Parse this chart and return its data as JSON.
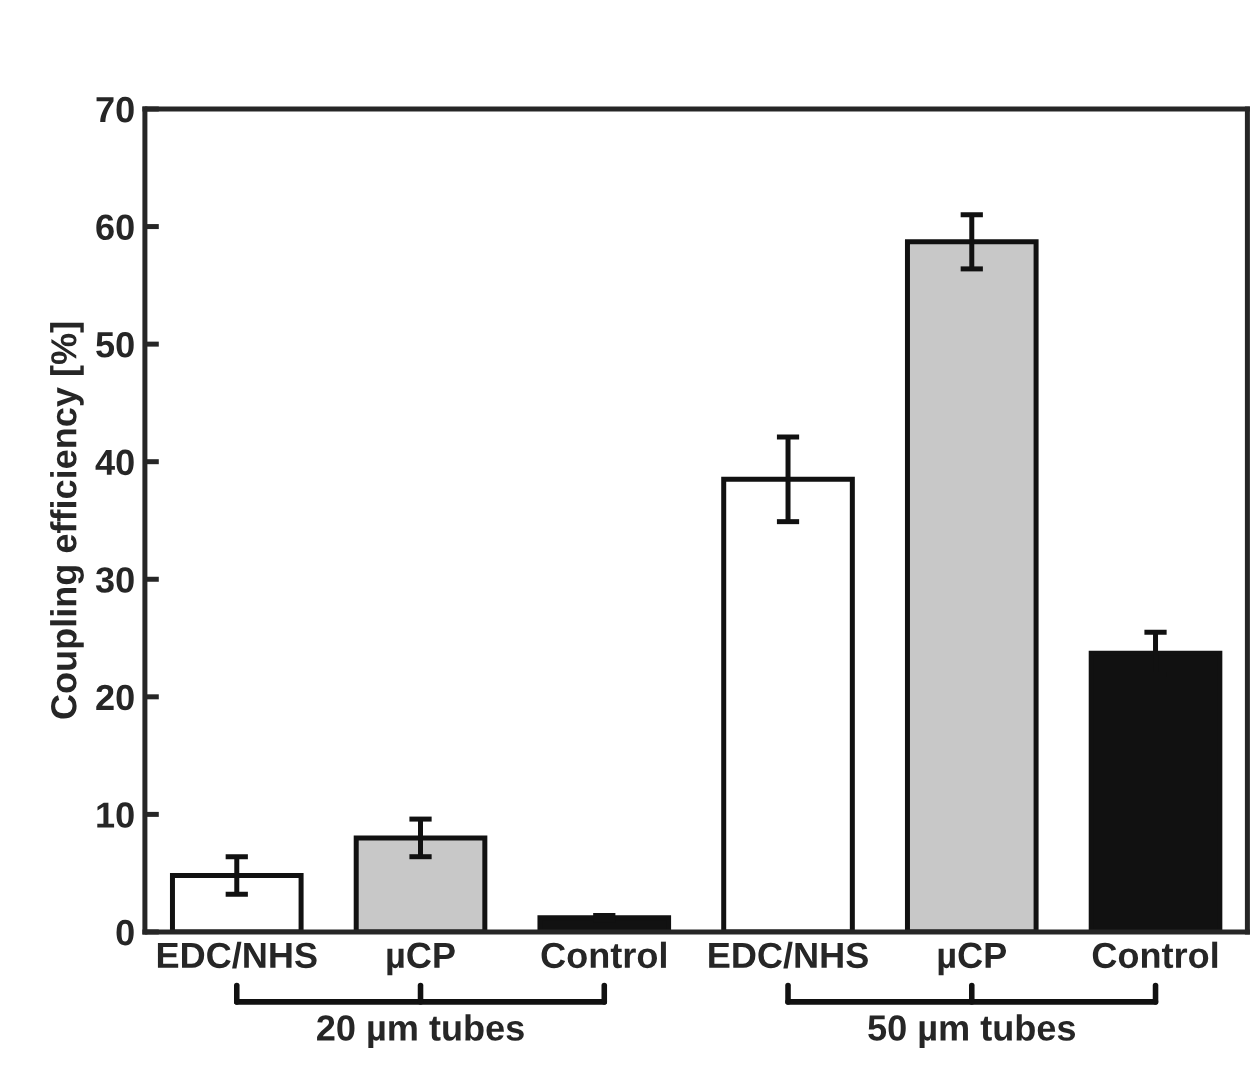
{
  "chart_data": {
    "type": "bar",
    "ylabel": "Coupling efficiency [%]",
    "categories": [
      "EDC/NHS",
      "µCP",
      "Control",
      "EDC/NHS",
      "µCP",
      "Control"
    ],
    "values": [
      4.8,
      8.0,
      1.2,
      38.5,
      58.7,
      23.7
    ],
    "errors": [
      1.6,
      1.6,
      0.2,
      3.6,
      2.3,
      1.8
    ],
    "colors": [
      "#ffffff",
      "#c8c8c8",
      "#111111",
      "#ffffff",
      "#c8c8c8",
      "#111111"
    ],
    "ylim": [
      0,
      70
    ],
    "yticks": [
      0,
      10,
      20,
      30,
      40,
      50,
      60,
      70
    ],
    "annotations": [
      "20 µm tubes",
      "50 µm tubes"
    ],
    "grid": false,
    "legend": false
  }
}
